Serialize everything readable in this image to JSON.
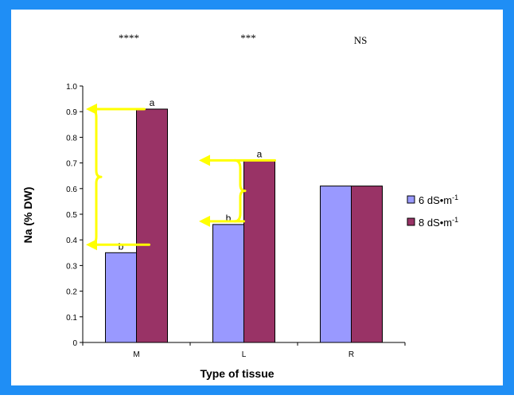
{
  "colors": {
    "frame_bg": "#1f8ef5",
    "plot_bg": "#ffffff",
    "series_6": "#9999ff",
    "series_8": "#993366",
    "annotation": "#ffff00",
    "text": "#000000"
  },
  "significance": [
    "****",
    "***",
    "NS"
  ],
  "chart_data": {
    "type": "bar",
    "categories": [
      "M",
      "L",
      "R"
    ],
    "series": [
      {
        "name": "6 dS•m-1",
        "values": [
          0.35,
          0.46,
          0.61
        ]
      },
      {
        "name": "8 dS•m-1",
        "values": [
          0.91,
          0.71,
          0.61
        ]
      }
    ],
    "xlabel": "Type of tissue",
    "ylabel": "Na (% DW)",
    "ylim": [
      0,
      1.0
    ],
    "yticks": [
      "0",
      "0.1",
      "0.2",
      "0.3",
      "0.4",
      "0.5",
      "0.6",
      "0.7",
      "0.8",
      "0.9",
      "1.0"
    ],
    "legend": {
      "position": "right",
      "entries": [
        {
          "base": "6 dS•m",
          "sup": "-1"
        },
        {
          "base": "8 dS•m",
          "sup": "-1"
        }
      ]
    },
    "letters": {
      "M": {
        "series_6": "b",
        "series_8": "a"
      },
      "L": {
        "series_6": "b",
        "series_8": "a"
      }
    },
    "grid": false
  }
}
